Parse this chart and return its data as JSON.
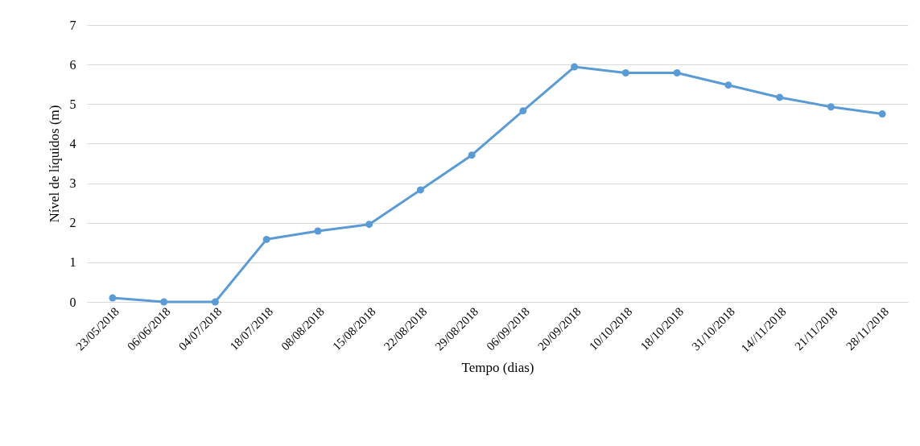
{
  "chart_data": {
    "type": "line",
    "xlabel": "Tempo (dias)",
    "ylabel": "Nível de líquidos (m)",
    "categories": [
      "23/05/2018",
      "06/06/2018",
      "04/07/2018",
      "18/07/2018",
      "08/08/2018",
      "15/08/2018",
      "22/08/2018",
      "29/08/2018",
      "06/09/2018",
      "20/09/2018",
      "10/10/2018",
      "18/10/2018",
      "31/10/2018",
      "14//11/2018",
      "21/11/2018",
      "28/11/2018"
    ],
    "series": [
      {
        "color": "#5b9bd5",
        "values": [
          0.1,
          0,
          0,
          1.58,
          1.79,
          1.96,
          2.83,
          3.71,
          4.83,
          5.94,
          5.79,
          5.79,
          5.48,
          5.17,
          4.93,
          4.75
        ]
      }
    ],
    "ylim": [
      0,
      7
    ],
    "yticks": [
      0,
      1,
      2,
      3,
      4,
      5,
      6,
      7
    ],
    "grid": "y",
    "marker": "circle",
    "line_style": "solid",
    "legend": false
  }
}
